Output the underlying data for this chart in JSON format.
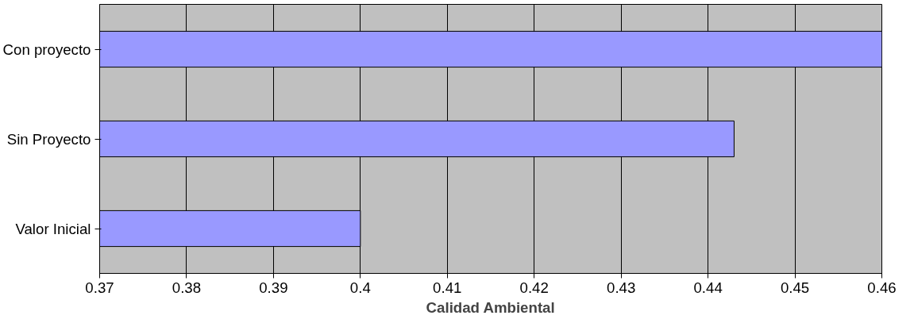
{
  "chart_data": {
    "type": "bar",
    "orientation": "horizontal",
    "xlabel": "Calidad Ambiental",
    "categories": [
      "Con proyecto",
      "Sin Proyecto",
      "Valor Inicial"
    ],
    "values": [
      0.46,
      0.443,
      0.4
    ],
    "color": "#9999ff",
    "xlim": [
      0.37,
      0.46
    ],
    "xticks": [
      0.37,
      0.38,
      0.39,
      0.4,
      0.41,
      0.42,
      0.43,
      0.44,
      0.45,
      0.46
    ],
    "grid": "x"
  }
}
